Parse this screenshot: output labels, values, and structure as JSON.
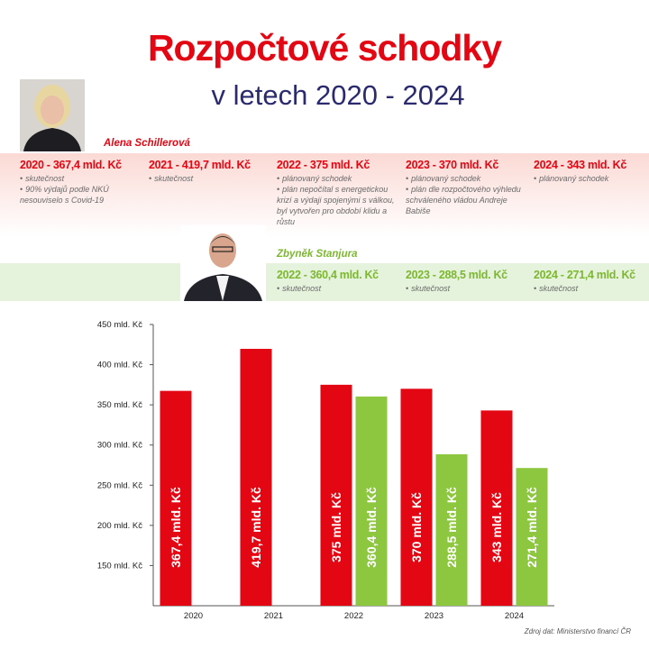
{
  "header": {
    "title": "Rozpočtové schodky",
    "subtitle": "v letech 2020 - 2024"
  },
  "people": [
    {
      "name": "Alena Schillerová",
      "color": "#e30613",
      "entries": [
        {
          "heading": "2020 - 367,4 mld. Kč",
          "notes": [
            "skutečnost",
            "90% výdajů podle NKÚ nesouviselo s Covid-19"
          ]
        },
        {
          "heading": "2021 - 419,7 mld. Kč",
          "notes": [
            "skutečnost"
          ]
        },
        {
          "heading": "2022 - 375 mld. Kč",
          "notes": [
            "plánovaný schodek",
            "plán nepočítal s energetickou krizí a výdaji spojenými s válkou, byl vytvořen pro období klidu a růstu"
          ]
        },
        {
          "heading": "2023 - 370 mld. Kč",
          "notes": [
            "plánovaný schodek",
            "plán dle rozpočtového výhledu schváleného vládou Andreje Babiše"
          ]
        },
        {
          "heading": "2024 - 343 mld. Kč",
          "notes": [
            "plánovaný schodek"
          ]
        }
      ]
    },
    {
      "name": "Zbyněk Stanjura",
      "color": "#7cb82f",
      "entries": [
        {
          "heading": "2022 - 360,4 mld. Kč",
          "notes": [
            "skutečnost"
          ]
        },
        {
          "heading": "2023 - 288,5 mld. Kč",
          "notes": [
            "skutečnost"
          ]
        },
        {
          "heading": "2024 - 271,4 mld. Kč",
          "notes": [
            "skutečnost"
          ]
        }
      ]
    }
  ],
  "chart_data": {
    "type": "bar",
    "categories": [
      "2020",
      "2021",
      "2022",
      "2023",
      "2024"
    ],
    "series": [
      {
        "name": "Alena Schillerová",
        "color": "#e30613",
        "values": [
          367.4,
          419.7,
          375,
          370,
          343
        ],
        "value_labels": [
          "367,4 mld. Kč",
          "419,7 mld. Kč",
          "375 mld. Kč",
          "370 mld. Kč",
          "343 mld. Kč"
        ]
      },
      {
        "name": "Zbyněk Stanjura",
        "color": "#8dc63f",
        "values": [
          null,
          null,
          360.4,
          288.5,
          271.4
        ],
        "value_labels": [
          null,
          null,
          "360,4 mld. Kč",
          "288,5 mld. Kč",
          "271,4 mld. Kč"
        ]
      }
    ],
    "ylim": [
      100,
      450
    ],
    "yticks": [
      {
        "value": 150,
        "label": "150 mld. Kč"
      },
      {
        "value": 200,
        "label": "200 mld. Kč"
      },
      {
        "value": 250,
        "label": "250 mld. Kč"
      },
      {
        "value": 300,
        "label": "300 mld. Kč"
      },
      {
        "value": 350,
        "label": "350 mld. Kč"
      },
      {
        "value": 400,
        "label": "400 mld. Kč"
      },
      {
        "value": 450,
        "label": "450 mld. Kč"
      }
    ],
    "grid": false,
    "source": "Zdroj dat: Ministerstvo financí ČR"
  }
}
